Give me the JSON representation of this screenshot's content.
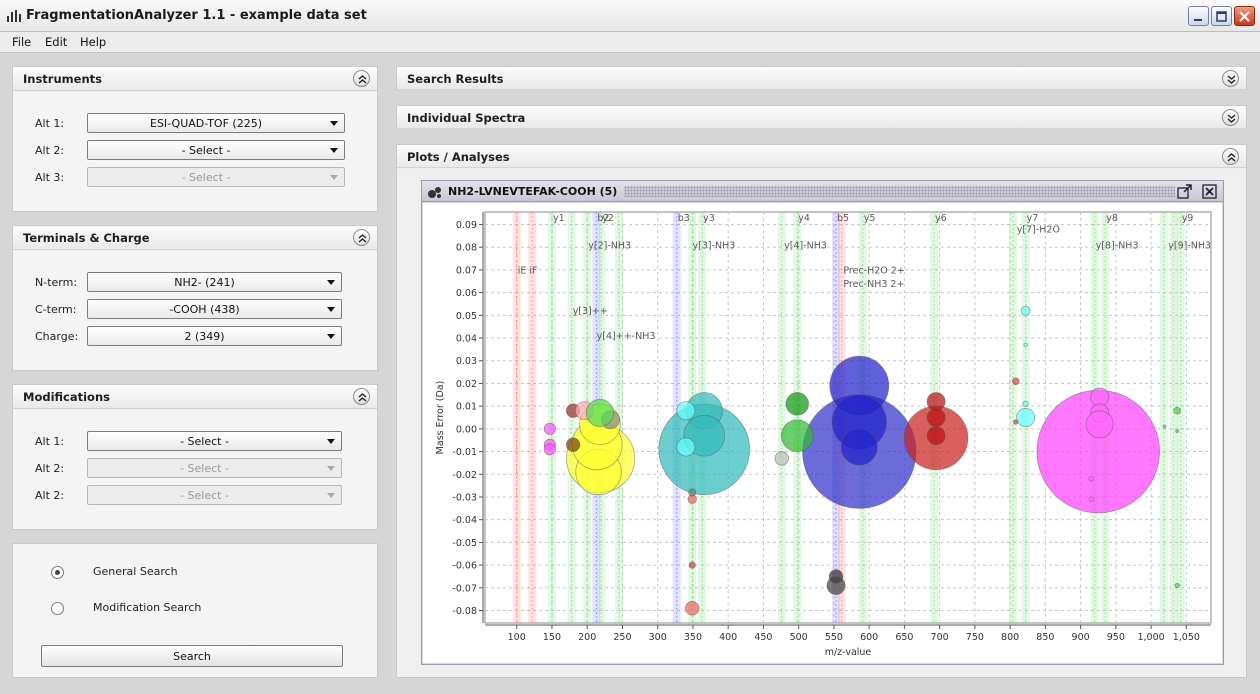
{
  "window": {
    "title": "FragmentationAnalyzer 1.1 - example data set"
  },
  "menu": {
    "file": "File",
    "edit": "Edit",
    "help": "Help"
  },
  "instruments": {
    "title": "Instruments",
    "rows": [
      {
        "label": "Alt 1:",
        "value": "ESI-QUAD-TOF (225)",
        "enabled": true
      },
      {
        "label": "Alt 2:",
        "value": "- Select -",
        "enabled": true
      },
      {
        "label": "Alt 3:",
        "value": "- Select -",
        "enabled": false
      }
    ]
  },
  "terminals": {
    "title": "Terminals & Charge",
    "rows": [
      {
        "label": "N-term:",
        "value": "NH2- (241)",
        "enabled": true
      },
      {
        "label": "C-term:",
        "value": "-COOH (438)",
        "enabled": true
      },
      {
        "label": "Charge:",
        "value": "2 (349)",
        "enabled": true
      }
    ]
  },
  "modifications": {
    "title": "Modifications",
    "rows": [
      {
        "label": "Alt 1:",
        "value": "- Select -",
        "enabled": true
      },
      {
        "label": "Alt 2:",
        "value": "- Select -",
        "enabled": false
      },
      {
        "label": "Alt 2:",
        "value": "- Select -",
        "enabled": false
      }
    ]
  },
  "search": {
    "general": "General Search",
    "modification": "Modification Search",
    "selected": "general",
    "button": "Search"
  },
  "right_panels": {
    "search_results": "Search Results",
    "individual_spectra": "Individual Spectra",
    "plots": "Plots / Analyses"
  },
  "plot_window": {
    "title": "NH2-LVNEVTEFAK-COOH (5)"
  },
  "chart_data": {
    "type": "scatter",
    "title": "",
    "xlabel": "m/z-value",
    "ylabel": "Mass Error (Da)",
    "xlim": [
      55,
      1085
    ],
    "ylim": [
      -0.0855,
      0.0955
    ],
    "x_ticks": [
      100,
      150,
      200,
      250,
      300,
      350,
      400,
      450,
      500,
      550,
      600,
      650,
      700,
      750,
      800,
      850,
      900,
      950,
      "1,000",
      "1,050"
    ],
    "y_ticks": [
      "0.09",
      "0.08",
      "0.07",
      "0.06",
      "0.05",
      "0.04",
      "0.03",
      "0.02",
      "0.01",
      "0.00",
      "-0.01",
      "-0.02",
      "-0.03",
      "-0.04",
      "-0.05",
      "-0.06",
      "-0.07",
      "-0.08"
    ],
    "grid": true,
    "bands": [
      {
        "x": 100,
        "color": "#ff8080"
      },
      {
        "x": 122,
        "color": "#ff8080"
      },
      {
        "x": 150,
        "color": "#80e080"
      },
      {
        "x": 178,
        "color": "#80e080"
      },
      {
        "x": 200,
        "color": "#80e080"
      },
      {
        "x": 213,
        "color": "#8080ff"
      },
      {
        "x": 220,
        "color": "#80e080"
      },
      {
        "x": 245,
        "color": "#80e080"
      },
      {
        "x": 327,
        "color": "#8080ff"
      },
      {
        "x": 363,
        "color": "#80e080"
      },
      {
        "x": 349,
        "color": "#80e080"
      },
      {
        "x": 476,
        "color": "#80e080"
      },
      {
        "x": 498,
        "color": "#80e080"
      },
      {
        "x": 553,
        "color": "#8080ff"
      },
      {
        "x": 561,
        "color": "#ff8080"
      },
      {
        "x": 591,
        "color": "#80e080"
      },
      {
        "x": 692,
        "color": "#80e080"
      },
      {
        "x": 804,
        "color": "#80e080"
      },
      {
        "x": 822,
        "color": "#80e080"
      },
      {
        "x": 920,
        "color": "#80e080"
      },
      {
        "x": 935,
        "color": "#80e080"
      },
      {
        "x": 1018,
        "color": "#80e080"
      },
      {
        "x": 1032,
        "color": "#80e080"
      },
      {
        "x": 1042,
        "color": "#80e080"
      }
    ],
    "annotations": [
      {
        "text": "y1",
        "x": 150,
        "y": 0.0915
      },
      {
        "text": "b2",
        "x": 213,
        "y": 0.0915
      },
      {
        "text": "y2",
        "x": 220,
        "y": 0.0915
      },
      {
        "text": "b3",
        "x": 327,
        "y": 0.0915
      },
      {
        "text": "y3",
        "x": 363,
        "y": 0.0915
      },
      {
        "text": "y4",
        "x": 498,
        "y": 0.0915
      },
      {
        "text": "b5",
        "x": 553,
        "y": 0.0915
      },
      {
        "text": "y5",
        "x": 591,
        "y": 0.0915
      },
      {
        "text": "y6",
        "x": 692,
        "y": 0.0915
      },
      {
        "text": "y7",
        "x": 822,
        "y": 0.0915
      },
      {
        "text": "y8",
        "x": 935,
        "y": 0.0915
      },
      {
        "text": "y9",
        "x": 1042,
        "y": 0.0915
      },
      {
        "text": "y[7]-H2O",
        "x": 808,
        "y": 0.0865
      },
      {
        "text": "y[2]-NH3",
        "x": 200,
        "y": 0.0795
      },
      {
        "text": "y[3]-NH3",
        "x": 348,
        "y": 0.0795
      },
      {
        "text": "y[4]-NH3",
        "x": 478,
        "y": 0.0795
      },
      {
        "text": "y[8]-NH3",
        "x": 920,
        "y": 0.0795
      },
      {
        "text": "y[9]-NH3",
        "x": 1023,
        "y": 0.0795
      },
      {
        "text": "iE iF",
        "x": 100,
        "y": 0.0685
      },
      {
        "text": "Prec-H2O 2+",
        "x": 562,
        "y": 0.0685
      },
      {
        "text": "Prec-NH3 2+",
        "x": 562,
        "y": 0.0625
      },
      {
        "text": "y[3]++",
        "x": 178,
        "y": 0.0505
      },
      {
        "text": "y[4]++-NH3",
        "x": 212,
        "y": 0.0395
      }
    ],
    "bubbles": [
      {
        "x": 925,
        "y": -0.01,
        "r": 0.027,
        "color": "#ff44ff"
      },
      {
        "x": 586,
        "y": -0.01,
        "r": 0.025,
        "color": "#3333cc"
      },
      {
        "x": 366,
        "y": -0.009,
        "r": 0.02,
        "color": "#33bbbb"
      },
      {
        "x": 695,
        "y": -0.004,
        "r": 0.014,
        "color": "#cc2222"
      },
      {
        "x": 219,
        "y": -0.013,
        "r": 0.015,
        "color": "#ffff33"
      },
      {
        "x": 216,
        "y": -0.019,
        "r": 0.01,
        "color": "#ffff33"
      },
      {
        "x": 214,
        "y": -0.007,
        "r": 0.011,
        "color": "#ffff33"
      },
      {
        "x": 218,
        "y": 0.002,
        "r": 0.009,
        "color": "#ffff33"
      },
      {
        "x": 586,
        "y": 0.019,
        "r": 0.013,
        "color": "#2222cc"
      },
      {
        "x": 586,
        "y": 0.003,
        "r": 0.012,
        "color": "#2222cc"
      },
      {
        "x": 586,
        "y": -0.008,
        "r": 0.008,
        "color": "#2222cc"
      },
      {
        "x": 366,
        "y": 0.008,
        "r": 0.008,
        "color": "#33bbbb"
      },
      {
        "x": 366,
        "y": -0.003,
        "r": 0.009,
        "color": "#33bbbb"
      },
      {
        "x": 340,
        "y": 0.008,
        "r": 0.004,
        "color": "#66ffff"
      },
      {
        "x": 340,
        "y": -0.008,
        "r": 0.004,
        "color": "#66ffff"
      },
      {
        "x": 498,
        "y": -0.003,
        "r": 0.007,
        "color": "#33bb33"
      },
      {
        "x": 498,
        "y": 0.011,
        "r": 0.005,
        "color": "#119911"
      },
      {
        "x": 476,
        "y": -0.013,
        "r": 0.003,
        "color": "#bbbbbb"
      },
      {
        "x": 695,
        "y": 0.012,
        "r": 0.004,
        "color": "#bb1111"
      },
      {
        "x": 695,
        "y": 0.005,
        "r": 0.004,
        "color": "#bb1111"
      },
      {
        "x": 695,
        "y": -0.003,
        "r": 0.004,
        "color": "#bb1111"
      },
      {
        "x": 927,
        "y": 0.014,
        "r": 0.004,
        "color": "#ff66ff"
      },
      {
        "x": 927,
        "y": 0.007,
        "r": 0.004,
        "color": "#ff66ff"
      },
      {
        "x": 927,
        "y": 0.002,
        "r": 0.006,
        "color": "#ff66ff"
      },
      {
        "x": 915,
        "y": -0.022,
        "r": 0.001,
        "color": "#ff66ff"
      },
      {
        "x": 915,
        "y": -0.031,
        "r": 0.001,
        "color": "#ff66ff"
      },
      {
        "x": 822,
        "y": 0.005,
        "r": 0.004,
        "color": "#66ffff"
      },
      {
        "x": 822,
        "y": 0.052,
        "r": 0.002,
        "color": "#66ffff"
      },
      {
        "x": 822,
        "y": 0.037,
        "r": 0.0008,
        "color": "#66ffff"
      },
      {
        "x": 822,
        "y": 0.011,
        "r": 0.0012,
        "color": "#66ffff"
      },
      {
        "x": 808,
        "y": 0.021,
        "r": 0.0015,
        "color": "#dd4444"
      },
      {
        "x": 808,
        "y": 0.003,
        "r": 0.001,
        "color": "#dd4444"
      },
      {
        "x": 553,
        "y": -0.065,
        "r": 0.003,
        "color": "#333333"
      },
      {
        "x": 553,
        "y": -0.069,
        "r": 0.004,
        "color": "#444444"
      },
      {
        "x": 349,
        "y": -0.079,
        "r": 0.003,
        "color": "#ee6666"
      },
      {
        "x": 349,
        "y": -0.06,
        "r": 0.0014,
        "color": "#cc4444"
      },
      {
        "x": 349,
        "y": -0.031,
        "r": 0.0019,
        "color": "#ee6666"
      },
      {
        "x": 349,
        "y": -0.028,
        "r": 0.0016,
        "color": "#777777"
      },
      {
        "x": 147,
        "y": 0.0,
        "r": 0.0025,
        "color": "#ff55ff"
      },
      {
        "x": 147,
        "y": -0.007,
        "r": 0.0025,
        "color": "#ff55ff"
      },
      {
        "x": 147,
        "y": -0.009,
        "r": 0.0025,
        "color": "#ff55ff"
      },
      {
        "x": 180,
        "y": 0.008,
        "r": 0.003,
        "color": "#993333"
      },
      {
        "x": 180,
        "y": -0.007,
        "r": 0.003,
        "color": "#774411"
      },
      {
        "x": 196,
        "y": 0.008,
        "r": 0.004,
        "color": "#ffaaaa"
      },
      {
        "x": 233,
        "y": 0.004,
        "r": 0.004,
        "color": "#888888"
      },
      {
        "x": 218,
        "y": 0.007,
        "r": 0.006,
        "color": "#55dd55"
      },
      {
        "x": 1037,
        "y": 0.008,
        "r": 0.0015,
        "color": "#55cc55"
      },
      {
        "x": 1037,
        "y": -0.069,
        "r": 0.001,
        "color": "#55cc55"
      },
      {
        "x": 1037,
        "y": -0.001,
        "r": 0.0006,
        "color": "#55cc55"
      },
      {
        "x": 1019,
        "y": 0.001,
        "r": 0.0005,
        "color": "#aaaaaa"
      }
    ]
  }
}
